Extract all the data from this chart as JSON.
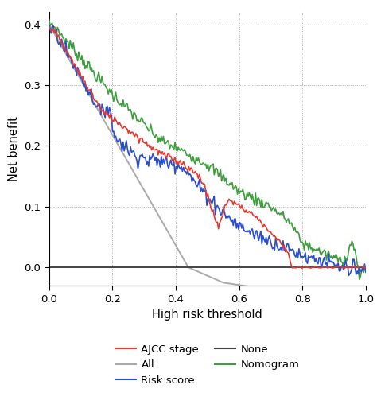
{
  "xlabel": "High risk threshold",
  "ylabel": "Net benefit",
  "xlim": [
    0.0,
    1.0
  ],
  "ylim": [
    -0.03,
    0.42
  ],
  "yticks": [
    0.0,
    0.1,
    0.2,
    0.3,
    0.4
  ],
  "xticks": [
    0.0,
    0.2,
    0.4,
    0.6,
    0.8,
    1.0
  ],
  "colors": {
    "ajcc": "#e8382e",
    "risk": "#2b4fcc",
    "nomogram": "#3d9e3d",
    "all": "#aaaaaa",
    "none": "#444444"
  }
}
